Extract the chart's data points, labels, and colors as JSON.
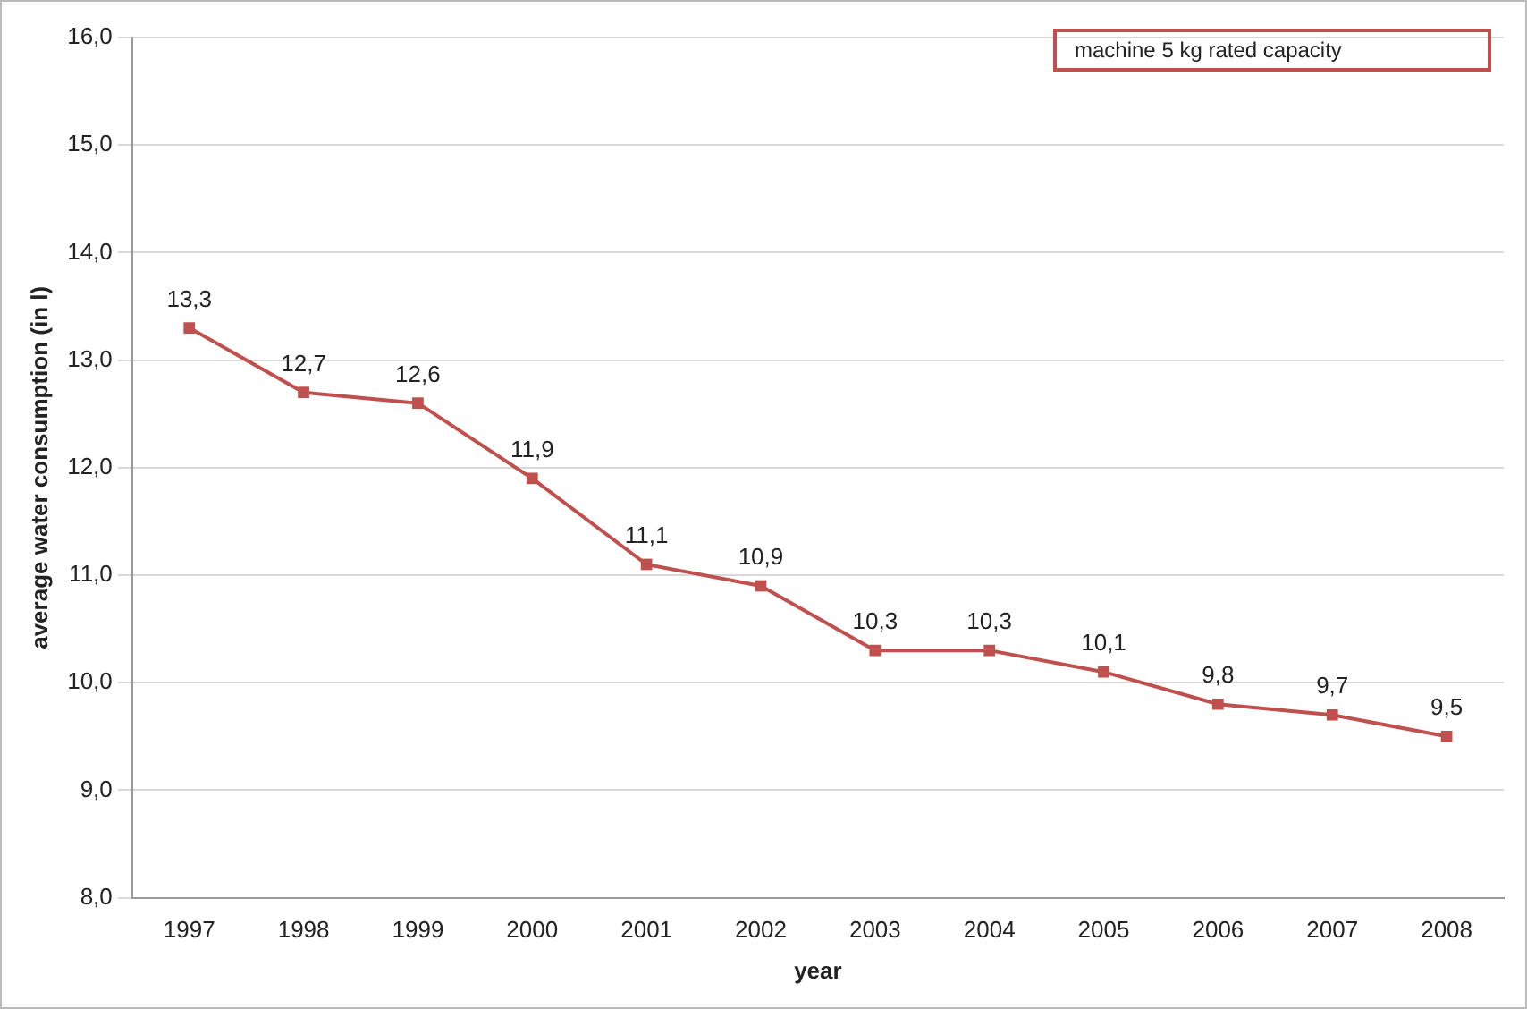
{
  "chart_data": {
    "type": "line",
    "xlabel": "year",
    "ylabel": "average water consumption (in l)",
    "categories": [
      "1997",
      "1998",
      "1999",
      "2000",
      "2001",
      "2002",
      "2003",
      "2004",
      "2005",
      "2006",
      "2007",
      "2008"
    ],
    "series": [
      {
        "color": "#c0504d",
        "values": [
          13.3,
          12.7,
          12.6,
          11.9,
          11.1,
          10.9,
          10.3,
          10.3,
          10.1,
          9.8,
          9.7,
          9.5
        ],
        "value_labels": [
          "13,3",
          "12,7",
          "12,6",
          "11,9",
          "11,1",
          "10,9",
          "10,3",
          "10,3",
          "10,1",
          "9,8",
          "9,7",
          "9,5"
        ]
      }
    ],
    "ylim": [
      8,
      16
    ],
    "yticks": [
      {
        "value": 8,
        "label": "8,0"
      },
      {
        "value": 9,
        "label": "9,0"
      },
      {
        "value": 10,
        "label": "10,0"
      },
      {
        "value": 11,
        "label": "11,0"
      },
      {
        "value": 12,
        "label": "12,0"
      },
      {
        "value": 13,
        "label": "13,0"
      },
      {
        "value": 14,
        "label": "14,0"
      },
      {
        "value": 15,
        "label": "15,0"
      },
      {
        "value": 16,
        "label": "16,0"
      }
    ],
    "grid": "y",
    "legend": false,
    "marker": "square",
    "line_style": "solid",
    "annotations": [
      "machine 5 kg rated capacity"
    ]
  }
}
